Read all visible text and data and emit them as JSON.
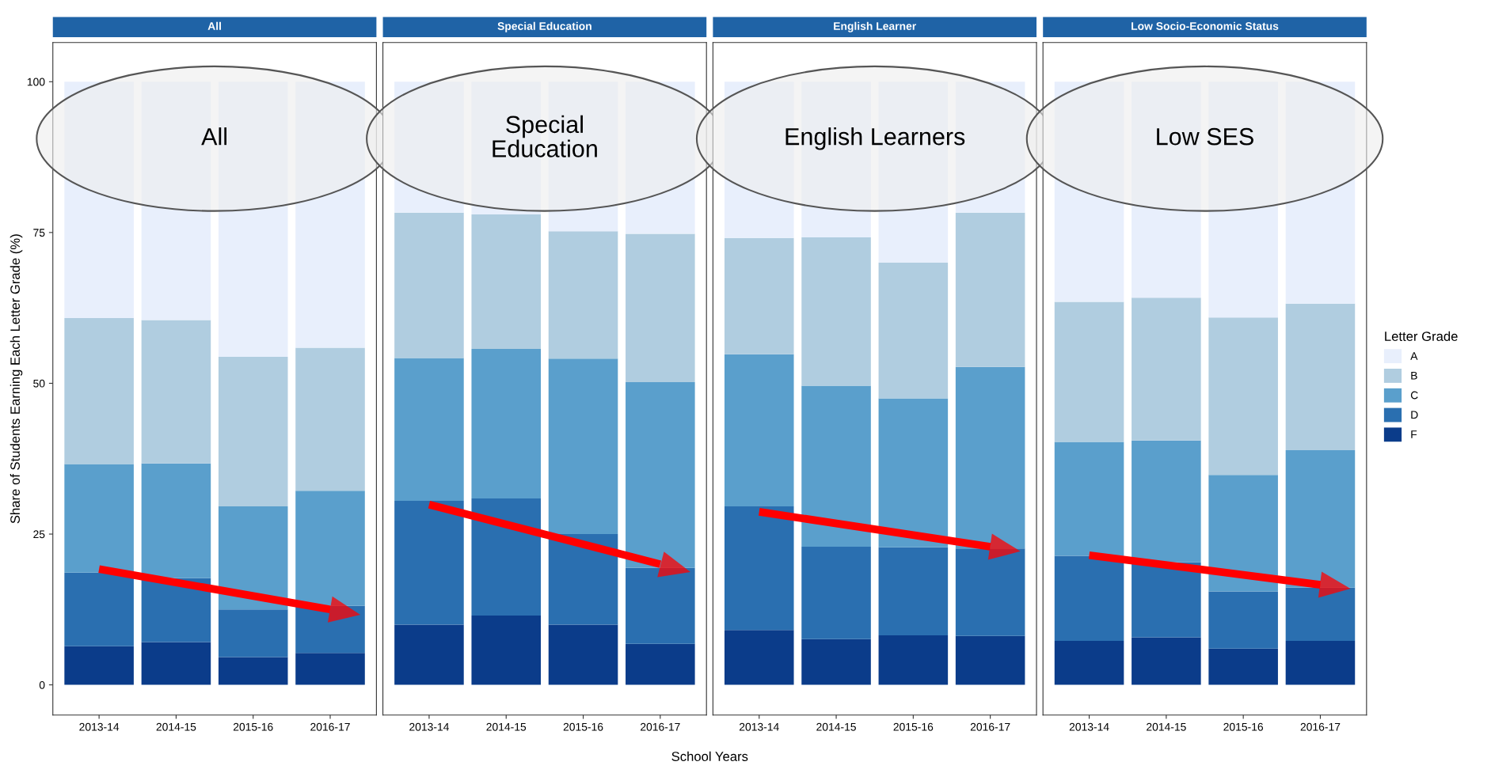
{
  "chart_data": [
    {
      "type": "bar",
      "stacked": true,
      "title": "All",
      "ylabel": "Share of Students Earning Each Letter Grade (%)",
      "annotations": [
        "All"
      ],
      "legend_title": "Letter Grade",
      "legend": "right",
      "categories": [
        "2013-14",
        "2014-15",
        "2015-16",
        "2016-17"
      ],
      "ylim": [
        -5,
        106.5
      ],
      "yticks": [
        0,
        25,
        50,
        75,
        100
      ],
      "grid": false,
      "series": [
        {
          "name": "F",
          "color": "#0b3c8a",
          "values": [
            6.4,
            7.1,
            4.6,
            5.3
          ]
        },
        {
          "name": "D",
          "color": "#2a6fb0",
          "values": [
            12.2,
            10.6,
            7.9,
            7.8
          ]
        },
        {
          "name": "C",
          "color": "#5a9fcc",
          "values": [
            18.0,
            19.0,
            17.1,
            19.1
          ]
        },
        {
          "name": "B",
          "color": "#b0cde0",
          "values": [
            24.2,
            23.8,
            24.8,
            23.7
          ]
        },
        {
          "name": "A",
          "color": "#e8effc",
          "values": [
            39.2,
            39.5,
            45.6,
            44.1
          ]
        },
        {
          "type": "line",
          "color": "#ff0000",
          "x": [
            "2013-14",
            "2016-17"
          ],
          "values": [
            19.2,
            12.5
          ]
        }
      ]
    },
    {
      "type": "bar",
      "stacked": true,
      "title": "Special Education",
      "xlabel": "School Years",
      "annotations": [
        "Special\nEducation"
      ],
      "categories": [
        "2013-14",
        "2014-15",
        "2015-16",
        "2016-17"
      ],
      "ylim": [
        -5,
        106.5
      ],
      "yticks": [
        0,
        25,
        50,
        75,
        100
      ],
      "tick_labels": "x",
      "grid": false,
      "series": [
        {
          "color": "#0b3c8a",
          "values": [
            10.0,
            11.5,
            10.0,
            6.8
          ]
        },
        {
          "color": "#2a6fb0",
          "values": [
            20.5,
            19.4,
            15.0,
            12.6
          ]
        },
        {
          "color": "#5a9fcc",
          "values": [
            23.7,
            24.8,
            29.1,
            30.8
          ]
        },
        {
          "color": "#b0cde0",
          "values": [
            24.1,
            22.3,
            21.1,
            24.6
          ]
        },
        {
          "color": "#e8effc",
          "values": [
            21.7,
            22.0,
            24.8,
            25.2
          ]
        },
        {
          "type": "line",
          "color": "#ff0000",
          "x": [
            "2013-14",
            "2016-17"
          ],
          "values": [
            29.9,
            20.0
          ]
        }
      ]
    },
    {
      "type": "bar",
      "stacked": true,
      "title": "English Learner",
      "annotations": [
        "English Learners"
      ],
      "categories": [
        "2013-14",
        "2014-15",
        "2015-16",
        "2016-17"
      ],
      "ylim": [
        -5,
        106.5
      ],
      "yticks": [
        0,
        25,
        50,
        75,
        100
      ],
      "tick_labels": "x",
      "grid": false,
      "series": [
        {
          "color": "#0b3c8a",
          "values": [
            9.1,
            7.6,
            8.2,
            8.1
          ]
        },
        {
          "color": "#2a6fb0",
          "values": [
            20.5,
            15.3,
            14.6,
            14.5
          ]
        },
        {
          "color": "#5a9fcc",
          "values": [
            25.2,
            26.7,
            24.7,
            30.1
          ]
        },
        {
          "color": "#b0cde0",
          "values": [
            19.3,
            24.6,
            22.5,
            25.6
          ]
        },
        {
          "color": "#e8effc",
          "values": [
            25.9,
            25.8,
            30.0,
            21.7
          ]
        },
        {
          "type": "line",
          "color": "#ff0000",
          "x": [
            "2013-14",
            "2016-17"
          ],
          "values": [
            28.7,
            22.9
          ]
        }
      ]
    },
    {
      "type": "bar",
      "stacked": true,
      "title": "Low Socio-Economic Status",
      "annotations": [
        "Low SES"
      ],
      "categories": [
        "2013-14",
        "2014-15",
        "2015-16",
        "2016-17"
      ],
      "ylim": [
        -5,
        106.5
      ],
      "yticks": [
        0,
        25,
        50,
        75,
        100
      ],
      "tick_labels": "x",
      "grid": false,
      "series": [
        {
          "color": "#0b3c8a",
          "values": [
            7.3,
            7.9,
            6.0,
            7.3
          ]
        },
        {
          "color": "#2a6fb0",
          "values": [
            14.1,
            12.4,
            9.5,
            8.8
          ]
        },
        {
          "color": "#5a9fcc",
          "values": [
            18.9,
            20.2,
            19.3,
            22.8
          ]
        },
        {
          "color": "#b0cde0",
          "values": [
            23.2,
            23.7,
            26.1,
            24.3
          ]
        },
        {
          "color": "#e8effc",
          "values": [
            36.5,
            35.8,
            39.1,
            36.8
          ]
        },
        {
          "type": "line",
          "color": "#ff0000",
          "x": [
            "2013-14",
            "2016-17"
          ],
          "values": [
            21.5,
            16.6
          ]
        }
      ]
    }
  ]
}
